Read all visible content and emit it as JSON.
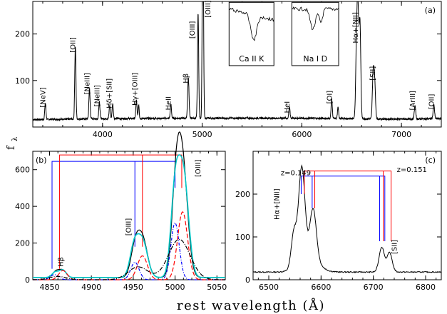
{
  "chart_data": [
    {
      "id": "a",
      "type": "line",
      "panel_label": "(a)",
      "ylabel": "f",
      "ylabel_subscript": "λ",
      "xlim": [
        3300,
        7400
      ],
      "ylim": [
        0,
        270
      ],
      "xticks": [
        4000,
        5000,
        6000,
        7000
      ],
      "yticks": [
        100,
        200
      ],
      "continuum": [
        [
          3300,
          16
        ],
        [
          4000,
          18
        ],
        [
          5000,
          19
        ],
        [
          6000,
          19
        ],
        [
          7000,
          17
        ],
        [
          7400,
          18
        ]
      ],
      "lines": [
        {
          "x": 3426,
          "peak": 35,
          "w": 6
        },
        {
          "x": 3727,
          "peak": 155,
          "w": 6
        },
        {
          "x": 3869,
          "peak": 65,
          "w": 6
        },
        {
          "x": 3968,
          "peak": 36,
          "w": 6
        },
        {
          "x": 4072,
          "peak": 28,
          "w": 6
        },
        {
          "x": 4102,
          "peak": 32,
          "w": 6
        },
        {
          "x": 4340,
          "peak": 39,
          "w": 6
        },
        {
          "x": 4363,
          "peak": 30,
          "w": 5
        },
        {
          "x": 4686,
          "peak": 30,
          "w": 6
        },
        {
          "x": 4861,
          "peak": 86,
          "w": 7
        },
        {
          "x": 4959,
          "peak": 225,
          "w": 6
        },
        {
          "x": 5007,
          "peak": 520,
          "w": 6
        },
        {
          "x": 5876,
          "peak": 24,
          "w": 6
        },
        {
          "x": 6300,
          "peak": 42,
          "w": 6
        },
        {
          "x": 6364,
          "peak": 24,
          "w": 6
        },
        {
          "x": 6548,
          "peak": 130,
          "w": 8
        },
        {
          "x": 6563,
          "peak": 235,
          "w": 9
        },
        {
          "x": 6584,
          "peak": 200,
          "w": 8
        },
        {
          "x": 6716,
          "peak": 95,
          "w": 8
        },
        {
          "x": 6731,
          "peak": 80,
          "w": 8
        },
        {
          "x": 7136,
          "peak": 28,
          "w": 7
        },
        {
          "x": 7325,
          "peak": 30,
          "w": 7
        }
      ],
      "annotations": [
        {
          "text": "[NeV]",
          "x": 3426,
          "y": 42,
          "rotate": true
        },
        {
          "text": "[OII]",
          "x": 3727,
          "y": 160,
          "rotate": true
        },
        {
          "text": "[NeIII]",
          "x": 3869,
          "y": 70,
          "rotate": true
        },
        {
          "text": "[NeIII]",
          "x": 3968,
          "y": 44,
          "rotate": true
        },
        {
          "text": "Hδ+[SII]",
          "x": 4090,
          "y": 40,
          "rotate": true
        },
        {
          "text": "Hγ+[OIII]",
          "x": 4350,
          "y": 46,
          "rotate": true
        },
        {
          "text": "HeII",
          "x": 4686,
          "y": 36,
          "rotate": true
        },
        {
          "text": "Hβ",
          "x": 4861,
          "y": 94,
          "rotate": true
        },
        {
          "text": "[OIII]",
          "x": 4925,
          "y": 190,
          "rotate": true
        },
        {
          "text": "[OIII]",
          "x": 5080,
          "y": 235,
          "rotate": true
        },
        {
          "text": "HeI",
          "x": 5876,
          "y": 30,
          "rotate": true
        },
        {
          "text": "[OI]",
          "x": 6300,
          "y": 50,
          "rotate": true
        },
        {
          "text": "Hα+[NII]",
          "x": 6563,
          "y": 180,
          "rotate": true
        },
        {
          "text": "[SII]",
          "x": 6735,
          "y": 100,
          "rotate": true
        },
        {
          "text": "[ArIII]",
          "x": 7136,
          "y": 36,
          "rotate": true
        },
        {
          "text": "[OII]",
          "x": 7325,
          "y": 38,
          "rotate": true
        }
      ],
      "insets": [
        {
          "label": "Ca II K",
          "x0": 5270,
          "x1": 5720,
          "y0": 132,
          "y1": 268
        },
        {
          "label": "Na I D",
          "x0": 5900,
          "x1": 6370,
          "y0": 132,
          "y1": 268
        }
      ]
    },
    {
      "id": "b",
      "type": "line",
      "panel_label": "(b)",
      "xlim": [
        4830,
        5060
      ],
      "ylim": [
        0,
        700
      ],
      "xticks": [
        4850,
        4900,
        4950,
        5000,
        5050
      ],
      "yticks": [
        0,
        200,
        400,
        600
      ],
      "series": [
        {
          "color": "#000000",
          "dash": "",
          "components": [
            [
              4858,
              35,
              4
            ],
            [
              4866,
              38,
              4
            ],
            [
              4952,
              150,
              5
            ],
            [
              4961,
              210,
              6
            ],
            [
              5001,
              430,
              5
            ],
            [
              5009,
              600,
              6
            ]
          ],
          "base": 12
        },
        {
          "color": "#00c8c8",
          "dash": "",
          "components": [
            [
              4857,
              30,
              4
            ],
            [
              4866,
              40,
              4
            ],
            [
              4951,
              160,
              5
            ],
            [
              4961,
              200,
              6
            ],
            [
              5000,
              450,
              5
            ],
            [
              5010,
              560,
              6
            ]
          ],
          "base": 12
        },
        {
          "color": "#0000ff",
          "dash": "4,2,1,2",
          "components": [
            [
              4856,
              28,
              5
            ],
            [
              4952,
              95,
              5
            ],
            [
              5000,
              310,
              5
            ]
          ],
          "base": 0
        },
        {
          "color": "#ff0000",
          "dash": "6,3",
          "components": [
            [
              4866,
              50,
              5
            ],
            [
              4961,
              130,
              6
            ],
            [
              5009,
              370,
              6
            ]
          ],
          "base": 0
        },
        {
          "color": "#000000",
          "dash": "6,2,1,2",
          "components": [
            [
              4860,
              18,
              10
            ],
            [
              4956,
              70,
              12
            ],
            [
              5005,
              220,
              13
            ]
          ],
          "base": 0
        }
      ],
      "brackets": [
        {
          "color": "#0000ff",
          "x1": 4853,
          "x2": 4952,
          "x3": 5000,
          "y": 645
        },
        {
          "color": "#ff0000",
          "x1": 4862,
          "x2": 4961,
          "x3": 5008,
          "y": 680
        }
      ],
      "annotations": [
        {
          "text": "Hβ",
          "x": 4866,
          "y": 70,
          "rotate": true
        },
        {
          "text": "[OIII]",
          "x": 4947,
          "y": 240,
          "rotate": true
        },
        {
          "text": "[OIII]",
          "x": 5030,
          "y": 560,
          "rotate": true
        }
      ]
    },
    {
      "id": "c",
      "type": "line",
      "panel_label": "(c)",
      "xlim": [
        6470,
        6830
      ],
      "ylim": [
        0,
        300
      ],
      "xticks": [
        6500,
        6600,
        6700,
        6800
      ],
      "yticks": [
        0,
        100,
        200
      ],
      "continuum_level": 18,
      "components": [
        [
          6548,
          80,
          5
        ],
        [
          6563,
          215,
          6
        ],
        [
          6585,
          115,
          6
        ],
        [
          6716,
          58,
          5
        ],
        [
          6731,
          45,
          5
        ],
        [
          6575,
          40,
          18
        ]
      ],
      "brackets": [
        {
          "color": "#0000ff",
          "x1": 6562,
          "x2": 6583,
          "x3": 6712,
          "x4": 6722,
          "y": 242
        },
        {
          "color": "#ff0000",
          "x1": 6568,
          "x2": 6588,
          "x3": 6719,
          "x4": 6734,
          "y": 254
        }
      ],
      "annotations": [
        {
          "text": "z=0.149",
          "x": 6523,
          "y": 244,
          "rotate": false
        },
        {
          "text": "z=0.151",
          "x": 6745,
          "y": 252,
          "rotate": false
        },
        {
          "text": "Hα+[NII]",
          "x": 6520,
          "y": 140,
          "rotate": true
        },
        {
          "text": "[SII]",
          "x": 6745,
          "y": 60,
          "rotate": true
        }
      ]
    }
  ],
  "xlabel": "rest wavelength (Å)"
}
